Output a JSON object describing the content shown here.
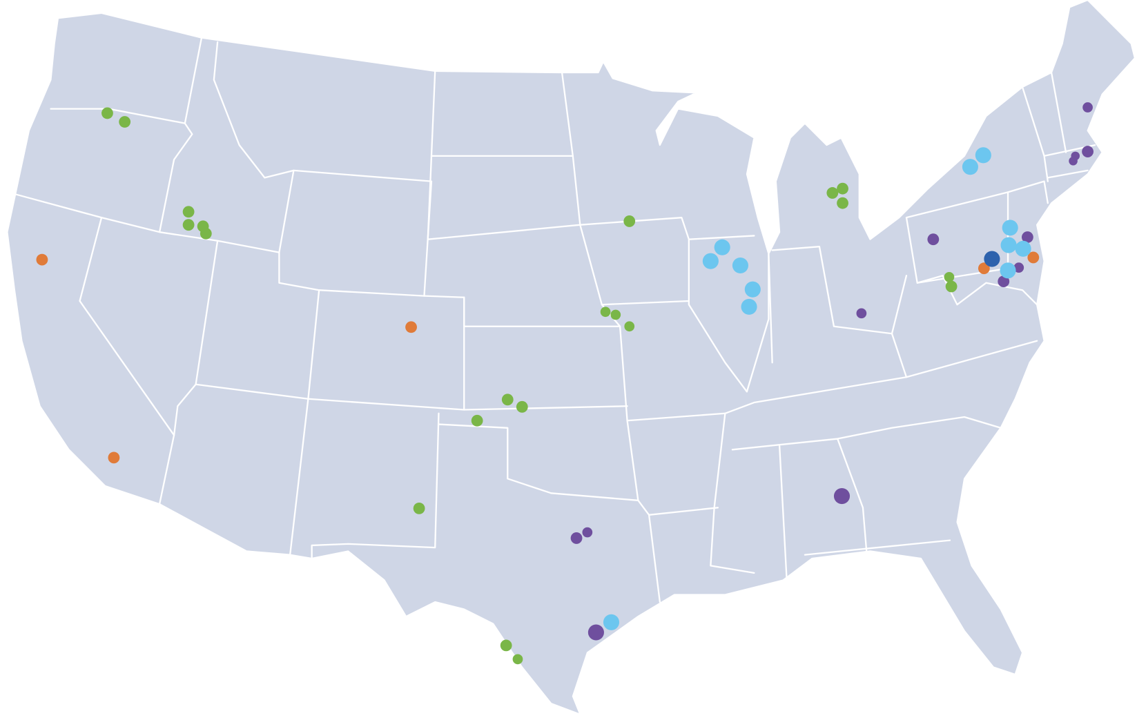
{
  "map": {
    "region": "contiguous-united-states",
    "land_color": "#cfd6e6",
    "border_color": "#ffffff",
    "background_color": "#ffffff"
  },
  "marker_categories": {
    "green": {
      "color": "#7ab648"
    },
    "orange": {
      "color": "#e07b39"
    },
    "purple": {
      "color": "#6f4f9e"
    },
    "light_blue": {
      "color": "#6cc6ef"
    },
    "dark_blue": {
      "color": "#2d62ad"
    }
  }
}
